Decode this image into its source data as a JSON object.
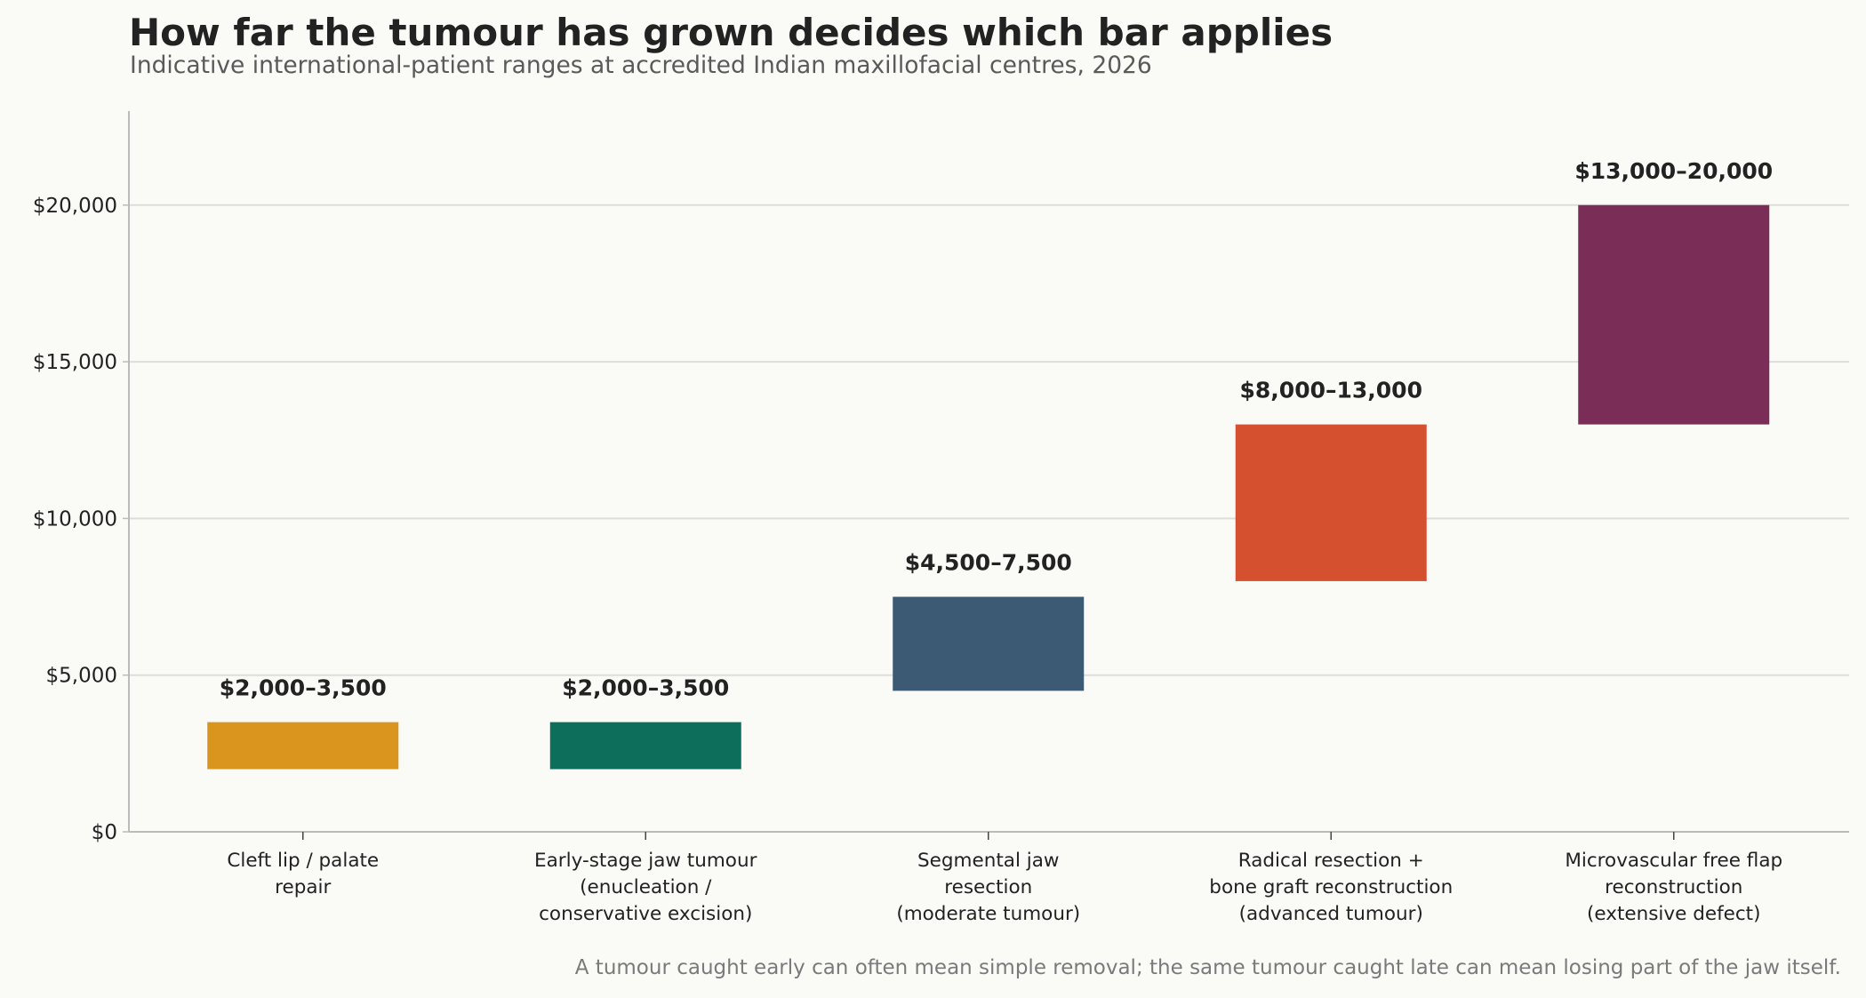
{
  "title": "How far the tumour has grown decides which bar applies",
  "subtitle": "Indicative international-patient ranges at accredited Indian maxillofacial centres, 2026",
  "footnote": "A tumour caught early can often mean simple removal; the same tumour caught late can mean losing part of the jaw itself.",
  "chart_data": {
    "type": "bar",
    "subtype": "floating-range",
    "title": "How far the tumour has grown decides which bar applies",
    "subtitle": "Indicative international-patient ranges at accredited Indian maxillofacial centres, 2026",
    "xlabel": "",
    "ylabel": "",
    "ylim": [
      0,
      23000
    ],
    "yticks": [
      0,
      5000,
      10000,
      15000,
      20000
    ],
    "ytick_labels": [
      "$0",
      "$5,000",
      "$10,000",
      "$15,000",
      "$20,000"
    ],
    "grid": "horizontal",
    "legend": "none",
    "categories": [
      [
        "Cleft lip / palate",
        "repair"
      ],
      [
        "Early-stage jaw tumour",
        "(enucleation /",
        "conservative excision)"
      ],
      [
        "Segmental jaw",
        "resection",
        "(moderate tumour)"
      ],
      [
        "Radical resection +",
        "bone graft reconstruction",
        "(advanced tumour)"
      ],
      [
        "Microvascular free flap",
        "reconstruction",
        "(extensive defect)"
      ]
    ],
    "ranges": [
      {
        "low": 2000,
        "high": 3500,
        "label": "$2,000–3,500",
        "color": "#D9951E"
      },
      {
        "low": 2000,
        "high": 3500,
        "label": "$2,000–3,500",
        "color": "#0E6E5C"
      },
      {
        "low": 4500,
        "high": 7500,
        "label": "$4,500–7,500",
        "color": "#3C5A73"
      },
      {
        "low": 8000,
        "high": 13000,
        "label": "$8,000–13,000",
        "color": "#D4502E"
      },
      {
        "low": 13000,
        "high": 20000,
        "label": "$13,000–20,000",
        "color": "#7A2D57"
      }
    ],
    "colors": {
      "grid": "#DDDDDA",
      "axis": "#BBBBBB",
      "background": "#FAFAF7"
    }
  }
}
